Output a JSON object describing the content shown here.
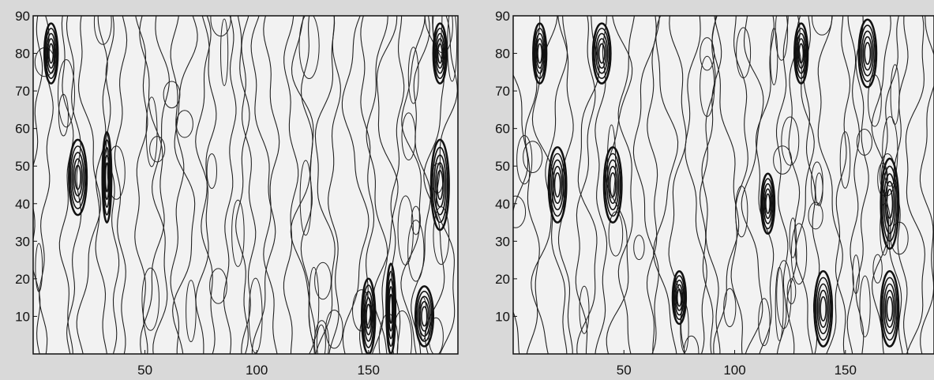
{
  "chart_data": [
    {
      "type": "contour",
      "xticks": [
        50,
        100,
        150
      ],
      "yticks": [
        10,
        20,
        30,
        40,
        50,
        60,
        70,
        80,
        90
      ],
      "xlim": [
        0,
        190
      ],
      "ylim": [
        0,
        90
      ],
      "grid": false,
      "dense_bands": [
        {
          "x": 20,
          "y": 47,
          "rx": 4,
          "ry": 10
        },
        {
          "x": 33,
          "y": 47,
          "rx": 2,
          "ry": 12
        },
        {
          "x": 8,
          "y": 80,
          "rx": 3,
          "ry": 8
        },
        {
          "x": 150,
          "y": 10,
          "rx": 3,
          "ry": 10
        },
        {
          "x": 160,
          "y": 12,
          "rx": 2,
          "ry": 12
        },
        {
          "x": 182,
          "y": 45,
          "rx": 4,
          "ry": 12
        },
        {
          "x": 182,
          "y": 80,
          "rx": 3,
          "ry": 8
        },
        {
          "x": 175,
          "y": 10,
          "rx": 4,
          "ry": 8
        }
      ]
    },
    {
      "type": "contour",
      "xticks": [
        50,
        100,
        150
      ],
      "yticks": [
        10,
        20,
        30,
        40,
        50,
        60,
        70,
        80,
        90
      ],
      "xlim": [
        0,
        190
      ],
      "ylim": [
        0,
        90
      ],
      "grid": false,
      "dense_bands": [
        {
          "x": 12,
          "y": 80,
          "rx": 3,
          "ry": 8
        },
        {
          "x": 40,
          "y": 80,
          "rx": 4,
          "ry": 8
        },
        {
          "x": 20,
          "y": 45,
          "rx": 4,
          "ry": 10
        },
        {
          "x": 45,
          "y": 45,
          "rx": 4,
          "ry": 10
        },
        {
          "x": 130,
          "y": 80,
          "rx": 3,
          "ry": 8
        },
        {
          "x": 160,
          "y": 80,
          "rx": 4,
          "ry": 9
        },
        {
          "x": 170,
          "y": 40,
          "rx": 4,
          "ry": 12
        },
        {
          "x": 140,
          "y": 12,
          "rx": 4,
          "ry": 10
        },
        {
          "x": 170,
          "y": 12,
          "rx": 4,
          "ry": 10
        },
        {
          "x": 115,
          "y": 40,
          "rx": 3,
          "ry": 8
        },
        {
          "x": 75,
          "y": 15,
          "rx": 3,
          "ry": 7
        }
      ]
    }
  ]
}
